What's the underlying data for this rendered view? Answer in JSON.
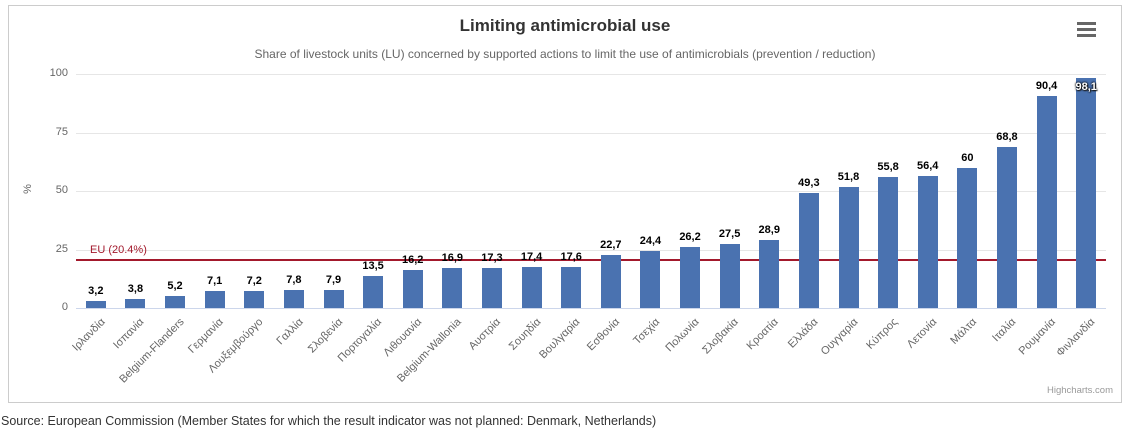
{
  "chart": {
    "title": "Limiting antimicrobial use",
    "subtitle": "Share of livestock units (LU) concerned by supported actions to limit the use of antimicrobials (prevention / reduction)",
    "credit": "Highcharts.com",
    "export_menu_icon": "hamburger-icon"
  },
  "source": "Source: European Commission (Member States for which the result indicator was not planned: Denmark, Netherlands)",
  "chart_data": {
    "type": "bar",
    "title": "Limiting antimicrobial use",
    "subtitle": "Share of livestock units (LU) concerned by supported actions to limit the use of antimicrobials (prevention / reduction)",
    "xlabel": "",
    "ylabel": "%",
    "ylim": [
      0,
      100
    ],
    "yticks": [
      0,
      25,
      50,
      75,
      100
    ],
    "grid": true,
    "legend": false,
    "categories": [
      "Ιρλανδία",
      "Ισπανία",
      "Belgium-Flanders",
      "Γερμανία",
      "Λουξεμβούργο",
      "Γαλλία",
      "Σλοβενία",
      "Πορτογαλία",
      "Λιθουανία",
      "Belgium-Wallonia",
      "Αυστρία",
      "Σουηδία",
      "Βουλγαρία",
      "Εσθονία",
      "Τσεχία",
      "Πολωνία",
      "Σλοβακία",
      "Κροατία",
      "Ελλάδα",
      "Ουγγαρία",
      "Κύπρος",
      "Λετονία",
      "Μάλτα",
      "Ιταλία",
      "Ρουμανία",
      "Φινλανδία"
    ],
    "values": [
      3.2,
      3.8,
      5.2,
      7.1,
      7.2,
      7.8,
      7.9,
      13.5,
      16.2,
      16.9,
      17.3,
      17.4,
      17.6,
      22.7,
      24.4,
      26.2,
      27.5,
      28.9,
      49.3,
      51.8,
      55.8,
      56.4,
      60,
      68.8,
      90.4,
      98.1
    ],
    "value_labels": [
      "3,2",
      "3,8",
      "5,2",
      "7,1",
      "7,2",
      "7,8",
      "7,9",
      "13,5",
      "16,2",
      "16,9",
      "17,3",
      "17,4",
      "17,6",
      "22,7",
      "24,4",
      "26,2",
      "27,5",
      "28,9",
      "49,3",
      "51,8",
      "55,8",
      "56,4",
      "60",
      "68,8",
      "90,4",
      "98,1"
    ],
    "plotline": {
      "label": "EU (20.4%)",
      "value": 20.4,
      "color": "#a3192c"
    },
    "colors": {
      "bar": "#4a72b0",
      "grid": "#e6e6e6",
      "axis": "#ccd6eb",
      "tick_label": "#666666",
      "value_label": "#000000"
    }
  }
}
